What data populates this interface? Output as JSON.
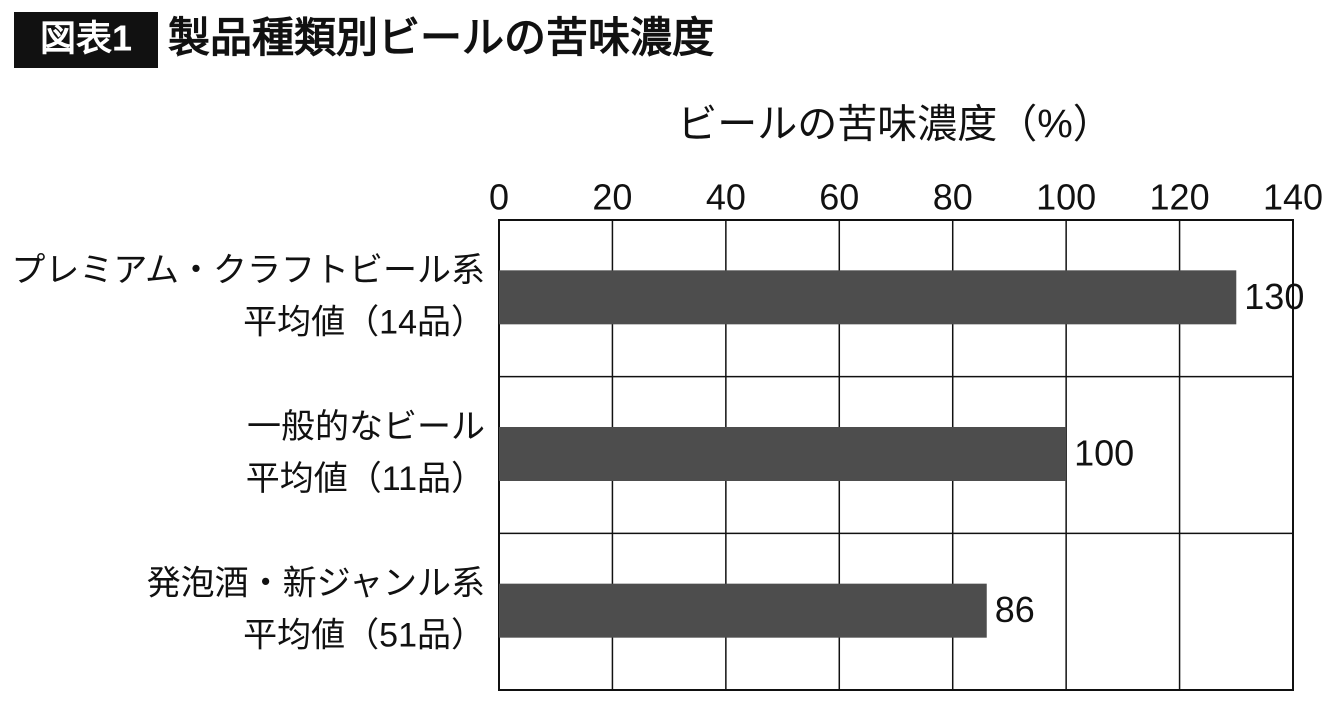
{
  "figure_label": "図表1",
  "chart_data": {
    "type": "bar",
    "orientation": "horizontal",
    "title": "製品種類別ビールの苦味濃度",
    "x_label": "ビールの苦味濃度（%）",
    "categories": [
      [
        "プレミアム・クラフトビール系",
        "平均値（14品）"
      ],
      [
        "一般的なビール",
        "平均値（11品）"
      ],
      [
        "発泡酒・新ジャンル系",
        "平均値（51品）"
      ]
    ],
    "values": [
      130,
      100,
      86
    ],
    "color": "#4d4d4d",
    "xlim": [
      0,
      140
    ],
    "xticks": [
      0,
      20,
      40,
      60,
      80,
      100,
      120,
      140
    ],
    "grid": true
  }
}
